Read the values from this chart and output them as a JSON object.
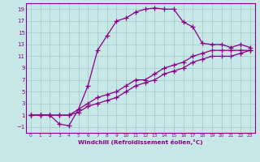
{
  "xlabel": "Windchill (Refroidissement éolien,°C)",
  "bg_color": "#c8e8e8",
  "grid_color": "#a0c8c8",
  "line_color": "#880088",
  "spine_color": "#660066",
  "xlim": [
    -0.5,
    23.5
  ],
  "ylim": [
    -2,
    20
  ],
  "xticks": [
    0,
    1,
    2,
    3,
    4,
    5,
    6,
    7,
    8,
    9,
    10,
    11,
    12,
    13,
    14,
    15,
    16,
    17,
    18,
    19,
    20,
    21,
    22,
    23
  ],
  "yticks": [
    -1,
    1,
    3,
    5,
    7,
    9,
    11,
    13,
    15,
    17,
    19
  ],
  "curve1_x": [
    0,
    1,
    2,
    3,
    4,
    5,
    6,
    7,
    8,
    9,
    10,
    11,
    12,
    13,
    14,
    15,
    16,
    17,
    18,
    19,
    20,
    21,
    22,
    23
  ],
  "curve1_y": [
    1,
    1,
    1,
    -0.5,
    -0.8,
    2,
    6,
    12,
    14.5,
    17,
    17.5,
    18.5,
    19,
    19.2,
    19,
    19,
    16.8,
    16,
    13.2,
    13,
    13,
    12.5,
    13,
    12.5
  ],
  "curve2_x": [
    0,
    1,
    2,
    3,
    4,
    5,
    6,
    7,
    8,
    9,
    10,
    11,
    12,
    13,
    14,
    15,
    16,
    17,
    18,
    19,
    20,
    21,
    22,
    23
  ],
  "curve2_y": [
    1,
    1,
    1,
    1,
    1,
    2,
    3,
    4,
    4.5,
    5,
    6,
    7,
    7,
    8,
    9,
    9.5,
    10,
    11,
    11.5,
    12,
    12,
    12,
    12,
    12
  ],
  "curve3_x": [
    0,
    1,
    2,
    3,
    4,
    5,
    6,
    7,
    8,
    9,
    10,
    11,
    12,
    13,
    14,
    15,
    16,
    17,
    18,
    19,
    20,
    21,
    22,
    23
  ],
  "curve3_y": [
    1,
    1,
    1,
    1,
    1,
    1.5,
    2.5,
    3,
    3.5,
    4,
    5,
    6,
    6.5,
    7,
    8,
    8.5,
    9,
    10,
    10.5,
    11,
    11,
    11,
    11.5,
    12
  ]
}
